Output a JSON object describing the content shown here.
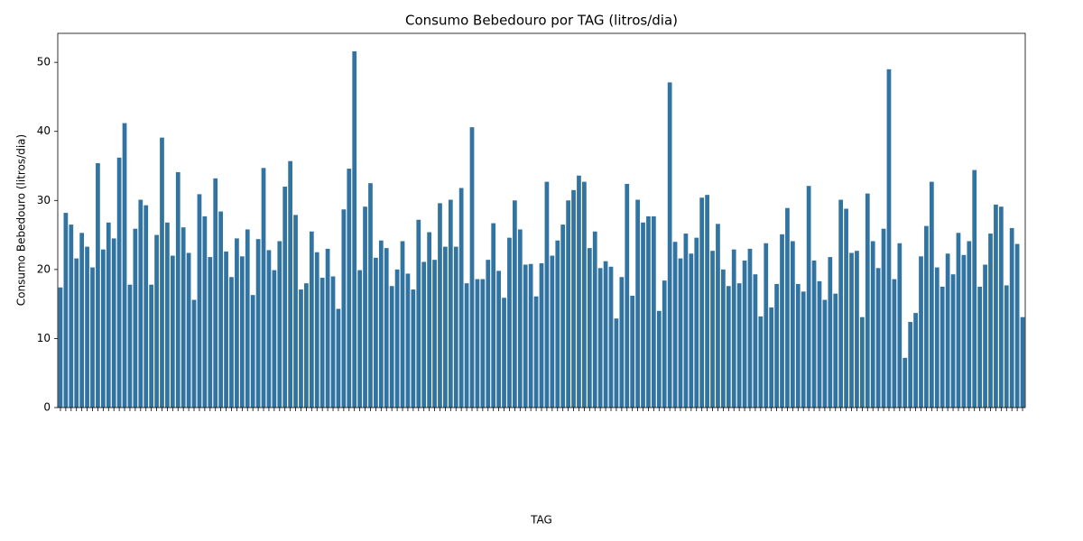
{
  "chart_data": {
    "type": "bar",
    "title": "Consumo Bebedouro por TAG (litros/dia)",
    "x_label": "TAG",
    "y_label": "Consumo Bebedouro (litros/dia)",
    "color": "#3274a1",
    "categories": [
      null,
      null,
      null,
      null,
      null,
      null,
      null,
      null,
      null,
      null,
      null,
      null,
      null,
      null,
      null,
      null,
      null,
      null,
      null,
      null,
      null,
      null,
      null,
      null,
      null,
      null,
      null,
      null,
      null,
      null,
      null,
      null,
      null,
      null,
      null,
      null,
      null,
      null,
      null,
      null,
      null,
      null,
      null,
      null,
      null,
      null,
      null,
      null,
      null,
      null,
      null,
      null,
      null,
      null,
      null,
      null,
      null,
      null,
      null,
      null,
      null,
      null,
      null,
      null,
      null,
      null,
      null,
      null,
      null,
      null,
      null,
      null,
      null,
      null,
      null,
      null,
      null,
      null,
      null,
      null,
      null,
      null,
      null,
      null,
      null,
      null,
      null,
      null,
      null,
      null,
      null,
      null,
      null,
      null,
      null,
      null,
      null,
      null,
      null,
      null,
      null,
      null,
      null,
      null,
      null,
      null,
      null,
      null,
      null,
      null,
      null,
      null,
      null,
      null,
      null,
      null,
      null,
      null,
      null,
      null,
      null,
      null,
      null,
      null,
      null,
      null,
      null,
      null,
      null,
      null,
      null,
      null,
      null,
      null,
      null,
      null,
      null,
      null,
      null,
      null,
      null,
      null,
      null,
      null,
      null,
      null,
      null,
      null,
      null,
      null,
      null,
      null,
      null,
      null,
      null,
      null,
      null,
      null,
      null,
      null,
      null,
      null,
      null,
      null,
      null,
      null,
      null,
      null,
      null,
      null,
      null,
      null,
      null,
      null,
      null,
      null,
      null,
      null,
      null,
      null,
      null
    ],
    "values": [
      17.4,
      28.2,
      26.5,
      21.6,
      25.3,
      23.3,
      20.3,
      35.4,
      22.9,
      26.8,
      24.5,
      36.2,
      41.2,
      17.8,
      25.9,
      30.1,
      29.3,
      17.8,
      25.0,
      39.1,
      26.8,
      22.0,
      34.1,
      26.1,
      22.4,
      15.6,
      30.9,
      27.7,
      21.8,
      33.2,
      28.4,
      22.6,
      18.9,
      24.5,
      21.9,
      25.8,
      16.3,
      24.4,
      34.7,
      22.8,
      19.9,
      24.1,
      32.0,
      35.7,
      27.9,
      17.1,
      18.0,
      25.5,
      22.5,
      18.8,
      23.0,
      19.0,
      14.3,
      28.7,
      34.6,
      51.6,
      19.9,
      29.1,
      32.5,
      21.7,
      24.2,
      23.1,
      17.6,
      20.0,
      24.1,
      19.4,
      17.1,
      27.2,
      21.1,
      25.4,
      21.4,
      29.6,
      23.3,
      30.1,
      23.3,
      31.8,
      18.0,
      40.6,
      18.6,
      18.6,
      21.4,
      26.7,
      19.8,
      15.9,
      24.6,
      30.0,
      25.8,
      20.7,
      20.8,
      16.1,
      20.9,
      32.7,
      22.0,
      24.2,
      26.5,
      30.0,
      31.5,
      33.6,
      32.7,
      23.1,
      25.5,
      20.2,
      21.2,
      20.4,
      12.9,
      18.9,
      32.4,
      16.2,
      30.1,
      26.8,
      27.7,
      27.7,
      14.0,
      18.4,
      47.1,
      24.0,
      21.6,
      25.2,
      22.3,
      24.6,
      30.4,
      30.8,
      22.7,
      26.6,
      20.0,
      17.6,
      22.9,
      18.0,
      21.3,
      23.0,
      19.3,
      13.2,
      23.8,
      14.5,
      17.9,
      25.1,
      28.9,
      24.1,
      17.9,
      16.8,
      32.1,
      21.3,
      18.3,
      15.6,
      21.8,
      16.5,
      30.1,
      28.8,
      22.4,
      22.7,
      13.1,
      31.0,
      24.1,
      20.2,
      25.9,
      49.0,
      18.6,
      23.8,
      7.2,
      12.4,
      13.7,
      21.9,
      26.3,
      32.7,
      20.3,
      17.5,
      22.3,
      19.3,
      25.3,
      22.1,
      24.1,
      34.4,
      17.5,
      20.7,
      25.2,
      29.4,
      29.1,
      17.7,
      26.0,
      23.7,
      13.1
    ],
    "ylim": [
      0,
      54.2
    ],
    "yticks": [
      0,
      10,
      20,
      30,
      40,
      50
    ]
  }
}
